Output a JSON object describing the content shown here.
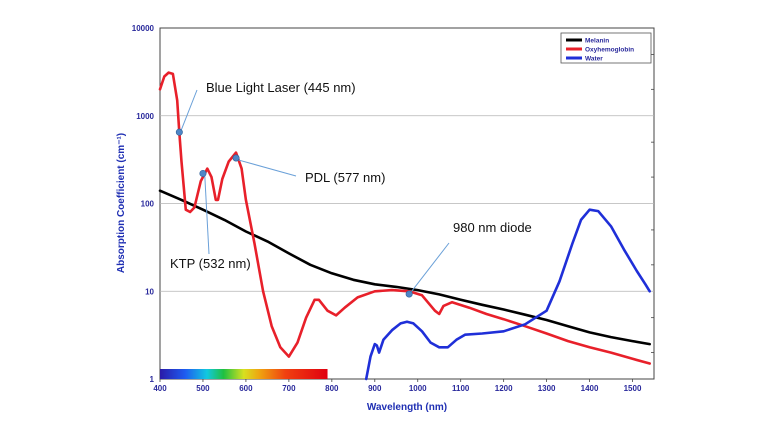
{
  "chart_data": {
    "type": "line",
    "xlabel": "Wavelength (nm)",
    "ylabel": "Absorption Coefficient (cm⁻¹)",
    "xlim": [
      400,
      1550
    ],
    "ylim": [
      1,
      10000
    ],
    "yscale": "log",
    "grid": "horizontal",
    "legend_position": "top-right",
    "x_ticks": [
      "400",
      "500",
      "600",
      "700",
      "800",
      "900",
      "1000",
      "1100",
      "1200",
      "1300",
      "1400",
      "1500"
    ],
    "y_ticks": [
      "1",
      "10",
      "100",
      "1000",
      "10000"
    ],
    "series": [
      {
        "name": "Melanin",
        "color": "#000000",
        "points": [
          [
            400,
            140
          ],
          [
            450,
            110
          ],
          [
            500,
            85
          ],
          [
            550,
            65
          ],
          [
            600,
            48
          ],
          [
            650,
            37
          ],
          [
            700,
            27
          ],
          [
            750,
            20
          ],
          [
            800,
            16
          ],
          [
            850,
            13.5
          ],
          [
            900,
            12
          ],
          [
            950,
            11.2
          ],
          [
            1000,
            10.3
          ],
          [
            1050,
            9.2
          ],
          [
            1100,
            8
          ],
          [
            1150,
            7
          ],
          [
            1200,
            6.2
          ],
          [
            1250,
            5.4
          ],
          [
            1300,
            4.7
          ],
          [
            1350,
            4.0
          ],
          [
            1400,
            3.4
          ],
          [
            1450,
            3.0
          ],
          [
            1500,
            2.7
          ],
          [
            1540,
            2.5
          ]
        ]
      },
      {
        "name": "Oxyhemoglobin",
        "color": "#e8202a",
        "points": [
          [
            400,
            2000
          ],
          [
            410,
            2800
          ],
          [
            420,
            3100
          ],
          [
            430,
            3000
          ],
          [
            440,
            1500
          ],
          [
            445,
            650
          ],
          [
            450,
            300
          ],
          [
            460,
            85
          ],
          [
            470,
            80
          ],
          [
            480,
            90
          ],
          [
            495,
            180
          ],
          [
            510,
            250
          ],
          [
            520,
            200
          ],
          [
            530,
            110
          ],
          [
            535,
            110
          ],
          [
            545,
            190
          ],
          [
            560,
            300
          ],
          [
            577,
            380
          ],
          [
            590,
            250
          ],
          [
            600,
            110
          ],
          [
            620,
            35
          ],
          [
            640,
            10
          ],
          [
            660,
            4
          ],
          [
            680,
            2.3
          ],
          [
            700,
            1.8
          ],
          [
            720,
            2.6
          ],
          [
            740,
            5
          ],
          [
            760,
            8
          ],
          [
            770,
            8
          ],
          [
            790,
            6
          ],
          [
            810,
            5.3
          ],
          [
            830,
            6.5
          ],
          [
            860,
            8.5
          ],
          [
            900,
            10
          ],
          [
            940,
            10.3
          ],
          [
            980,
            10
          ],
          [
            1010,
            9
          ],
          [
            1040,
            6
          ],
          [
            1050,
            5.5
          ],
          [
            1060,
            6.8
          ],
          [
            1080,
            7.5
          ],
          [
            1120,
            6.5
          ],
          [
            1160,
            5.5
          ],
          [
            1200,
            4.8
          ],
          [
            1250,
            4
          ],
          [
            1300,
            3.3
          ],
          [
            1350,
            2.7
          ],
          [
            1400,
            2.3
          ],
          [
            1450,
            2.0
          ],
          [
            1500,
            1.7
          ],
          [
            1540,
            1.5
          ]
        ]
      },
      {
        "name": "Water",
        "color": "#1f2fd8",
        "points": [
          [
            880,
            1
          ],
          [
            890,
            1.8
          ],
          [
            900,
            2.5
          ],
          [
            905,
            2.4
          ],
          [
            910,
            2.0
          ],
          [
            920,
            2.8
          ],
          [
            940,
            3.6
          ],
          [
            960,
            4.3
          ],
          [
            975,
            4.5
          ],
          [
            990,
            4.3
          ],
          [
            1010,
            3.5
          ],
          [
            1030,
            2.6
          ],
          [
            1050,
            2.3
          ],
          [
            1070,
            2.3
          ],
          [
            1090,
            2.8
          ],
          [
            1110,
            3.2
          ],
          [
            1150,
            3.3
          ],
          [
            1200,
            3.5
          ],
          [
            1250,
            4.2
          ],
          [
            1300,
            6
          ],
          [
            1330,
            13
          ],
          [
            1360,
            35
          ],
          [
            1380,
            65
          ],
          [
            1400,
            85
          ],
          [
            1420,
            82
          ],
          [
            1450,
            55
          ],
          [
            1480,
            30
          ],
          [
            1510,
            17
          ],
          [
            1530,
            12
          ],
          [
            1540,
            10
          ]
        ]
      }
    ],
    "annotations": [
      {
        "text": "Blue Light Laser (445 nm)",
        "x": 445,
        "y": 650
      },
      {
        "text": "KTP (532 nm)",
        "x": 500,
        "y": 220
      },
      {
        "text": "PDL (577 nm)",
        "x": 577,
        "y": 330
      },
      {
        "text": "980 nm diode",
        "x": 980,
        "y": 9.3
      }
    ],
    "color_bar": {
      "from": 400,
      "to": 790
    }
  }
}
